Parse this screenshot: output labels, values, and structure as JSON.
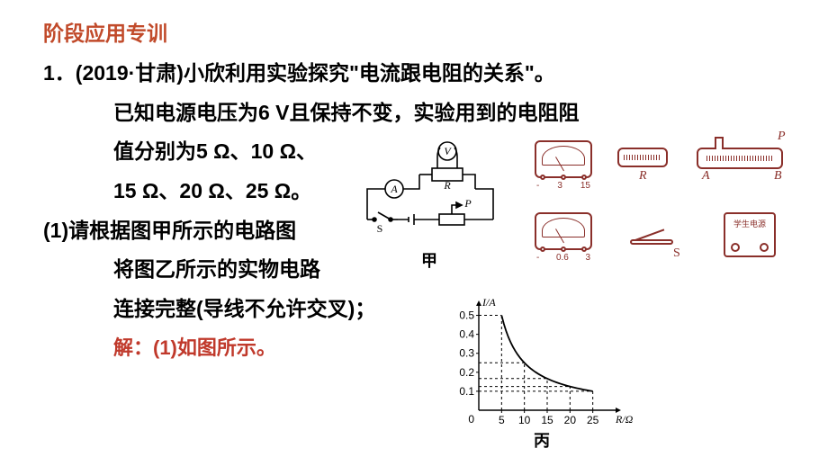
{
  "colors": {
    "header": "#c14a2a",
    "text": "#000000",
    "answer": "#c0392b",
    "diagram": "#8a2f2a",
    "axis": "#000000"
  },
  "fonts": {
    "header_size": 23,
    "body_size": 23,
    "answer_size": 22
  },
  "header": "阶段应用专训",
  "question": {
    "number": "1．",
    "source": "(2019·甘肃)",
    "lines": [
      "小欣利用实验探究\"电流跟电阻的关系\"。",
      "已知电源电压为6 V且保持不变，实验用到的电阻阻",
      "值分别为5 Ω、10 Ω、",
      "15 Ω、20 Ω、25 Ω。"
    ],
    "part1_label": "(1)",
    "part1_lines": [
      "请根据图甲所示的电路图",
      "将图乙所示的实物电路",
      "连接完整(导线不允许交叉)；"
    ],
    "answer": "解：(1)如图所示。"
  },
  "schematic": {
    "label": "甲",
    "voltmeter": "V",
    "ammeter": "A",
    "resistor": "R",
    "switch": "S",
    "slider": "P"
  },
  "apparatus": {
    "voltmeter_scale": [
      "-",
      "3",
      "15"
    ],
    "ammeter_scale": [
      "-",
      "0.6",
      "3"
    ],
    "R_label": "R",
    "P_label": "P",
    "A_label": "A",
    "B_label": "B",
    "S_label": "S",
    "psu_label": "学生电源"
  },
  "graph": {
    "label": "丙",
    "x_axis_label": "R/Ω",
    "y_axis_label": "I/A",
    "x_ticks": [
      5,
      10,
      15,
      20,
      25
    ],
    "y_ticks": [
      0.1,
      0.2,
      0.3,
      0.4,
      0.5
    ],
    "xlim": [
      0,
      30
    ],
    "ylim": [
      0,
      0.55
    ],
    "points": [
      {
        "x": 5,
        "y": 0.5
      },
      {
        "x": 10,
        "y": 0.25
      },
      {
        "x": 15,
        "y": 0.167
      },
      {
        "x": 20,
        "y": 0.125
      },
      {
        "x": 25,
        "y": 0.1
      }
    ],
    "curve_color": "#000000",
    "dash_color": "#000000",
    "tick_fontsize": 12
  }
}
